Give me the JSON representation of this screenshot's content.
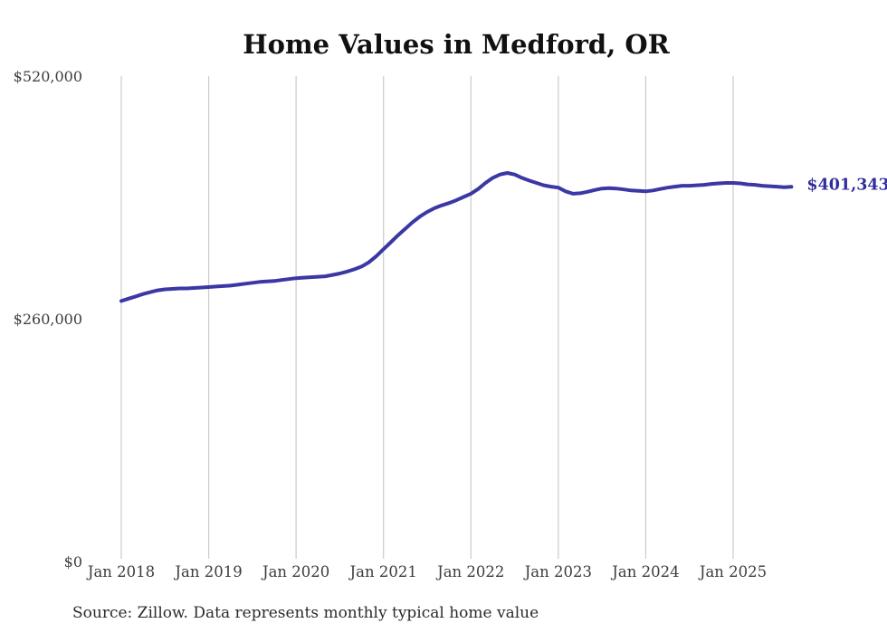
{
  "title": "Home Values in Medford, OR",
  "source_note": "Source: Zillow. Data represents monthly typical home value",
  "colors": {
    "line": "#3B37A4",
    "grid": "#CBCBCB",
    "axis_text": "#3D3D3D",
    "title_text": "#111111",
    "end_label": "#312D9B",
    "source_text": "#2B2B2B",
    "background": "#FFFFFF"
  },
  "chart_data": {
    "type": "line",
    "title": "Home Values in Medford, OR",
    "xlabel": "",
    "ylabel": "",
    "ylim": [
      0,
      520000
    ],
    "y_ticks": [
      520000,
      260000,
      0
    ],
    "y_tick_labels": [
      "$520,000",
      "$260,000",
      "$0"
    ],
    "x_tick_labels": [
      "Jan 2018",
      "Jan 2019",
      "Jan 2020",
      "Jan 2021",
      "Jan 2022",
      "Jan 2023",
      "Jan 2024",
      "Jan 2025"
    ],
    "x_tick_interval_months": 12,
    "grid": "vertical-only",
    "legend": "none",
    "end_annotation": {
      "text": "$401,343",
      "value": 401343,
      "x": "2025-09"
    },
    "x": [
      "2018-01",
      "2018-02",
      "2018-03",
      "2018-04",
      "2018-05",
      "2018-06",
      "2018-07",
      "2018-08",
      "2018-09",
      "2018-10",
      "2018-11",
      "2018-12",
      "2019-01",
      "2019-02",
      "2019-03",
      "2019-04",
      "2019-05",
      "2019-06",
      "2019-07",
      "2019-08",
      "2019-09",
      "2019-10",
      "2019-11",
      "2019-12",
      "2020-01",
      "2020-02",
      "2020-03",
      "2020-04",
      "2020-05",
      "2020-06",
      "2020-07",
      "2020-08",
      "2020-09",
      "2020-10",
      "2020-11",
      "2020-12",
      "2021-01",
      "2021-02",
      "2021-03",
      "2021-04",
      "2021-05",
      "2021-06",
      "2021-07",
      "2021-08",
      "2021-09",
      "2021-10",
      "2021-11",
      "2021-12",
      "2022-01",
      "2022-02",
      "2022-03",
      "2022-04",
      "2022-05",
      "2022-06",
      "2022-07",
      "2022-08",
      "2022-09",
      "2022-10",
      "2022-11",
      "2022-12",
      "2023-01",
      "2023-02",
      "2023-03",
      "2023-04",
      "2023-05",
      "2023-06",
      "2023-07",
      "2023-08",
      "2023-09",
      "2023-10",
      "2023-11",
      "2023-12",
      "2024-01",
      "2024-02",
      "2024-03",
      "2024-04",
      "2024-05",
      "2024-06",
      "2024-07",
      "2024-08",
      "2024-09",
      "2024-10",
      "2024-11",
      "2024-12",
      "2025-01",
      "2025-02",
      "2025-03",
      "2025-04",
      "2025-05",
      "2025-06",
      "2025-07",
      "2025-08",
      "2025-09"
    ],
    "values": [
      279000,
      281500,
      284000,
      286500,
      288500,
      290500,
      291500,
      292000,
      292500,
      292500,
      293000,
      293500,
      294000,
      294500,
      295000,
      295500,
      296500,
      297500,
      298500,
      299500,
      300000,
      300500,
      301500,
      302500,
      303500,
      304000,
      304500,
      305000,
      305500,
      307000,
      308500,
      310500,
      313000,
      316000,
      320500,
      327000,
      334500,
      342000,
      349500,
      356500,
      363500,
      369500,
      374500,
      378500,
      381500,
      384000,
      387000,
      390500,
      394000,
      399000,
      405500,
      411000,
      414500,
      416200,
      414500,
      411000,
      408000,
      405500,
      403000,
      401500,
      400500,
      396500,
      394000,
      394500,
      396000,
      398000,
      399500,
      400000,
      399500,
      398500,
      397500,
      397000,
      396500,
      397500,
      399000,
      400500,
      401500,
      402500,
      402500,
      403000,
      403500,
      404500,
      405000,
      405500,
      405500,
      405000,
      404000,
      403500,
      402500,
      402000,
      401500,
      401000,
      401343
    ]
  }
}
